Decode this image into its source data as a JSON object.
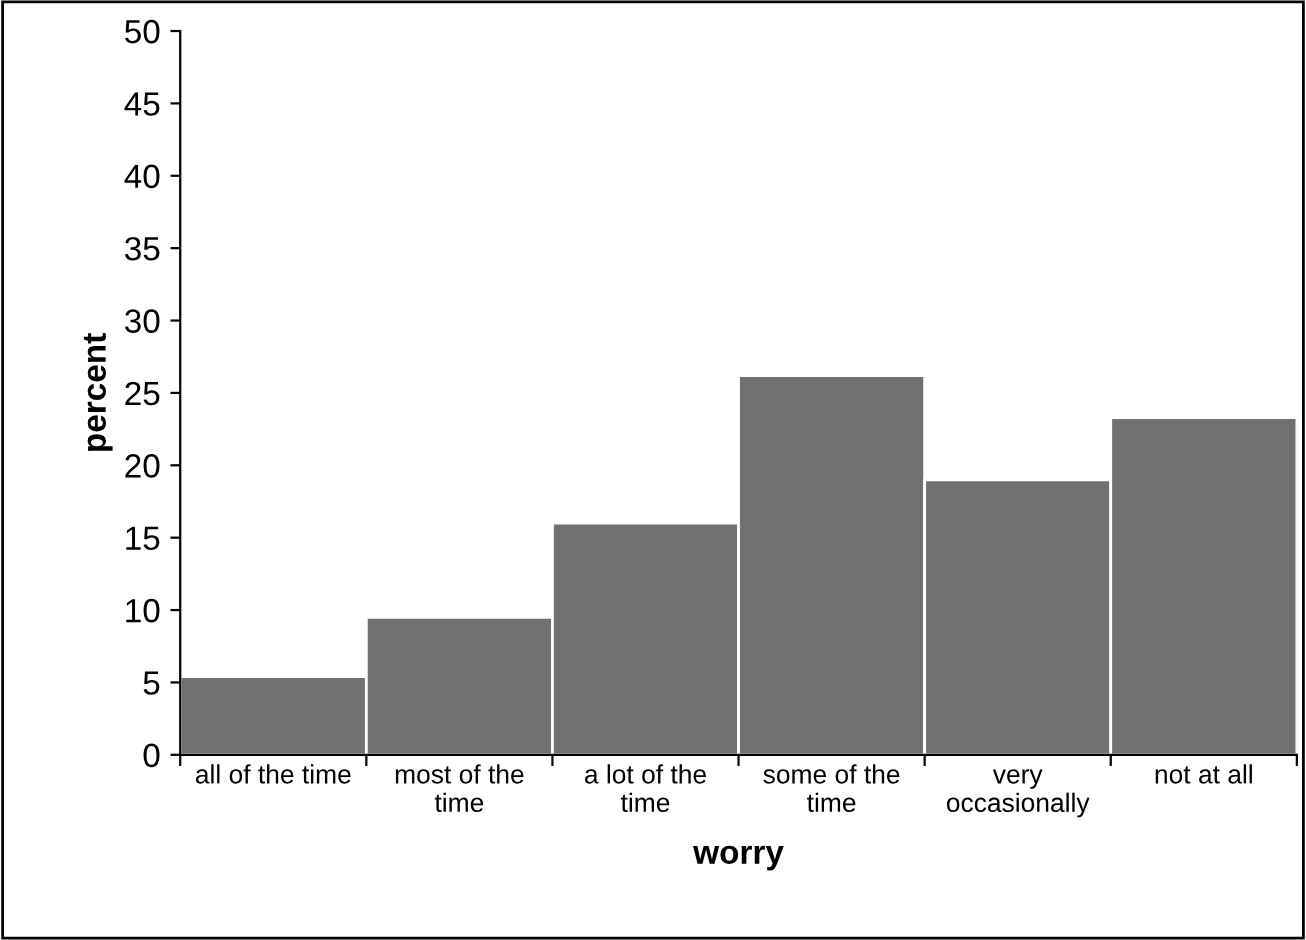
{
  "chart_data": {
    "type": "bar",
    "xlabel": "worry",
    "ylabel": "percent",
    "categories": [
      "all of the time",
      "most of the\ntime",
      "a lot of the\ntime",
      "some of the\ntime",
      "very\noccasionally",
      "not at all"
    ],
    "values": [
      5.4,
      9.5,
      16.0,
      26.2,
      19.0,
      23.3
    ],
    "color": "#707070",
    "ylim": [
      0,
      50
    ],
    "yticks": [
      0,
      5,
      10,
      15,
      20,
      25,
      30,
      35,
      40,
      45,
      50
    ],
    "grid": false,
    "legend": false
  }
}
